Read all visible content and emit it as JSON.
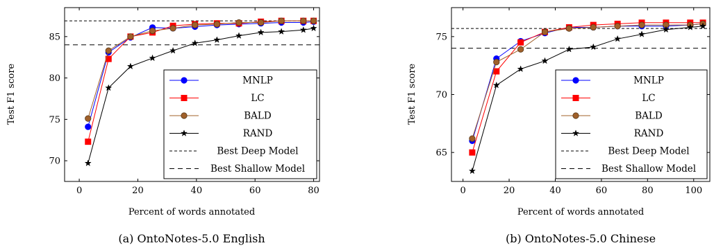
{
  "chart_data": [
    {
      "type": "line",
      "caption": "(a) OntoNotes-5.0 English",
      "xlabel": "Percent of words annotated",
      "ylabel": "Test F1 score",
      "xlim": [
        -5,
        82
      ],
      "ylim": [
        67.5,
        88.5
      ],
      "xticks": [
        0,
        20,
        40,
        60,
        80
      ],
      "yticks": [
        70,
        75,
        80,
        85
      ],
      "grid": false,
      "legend_position": "bottom-right",
      "series": [
        {
          "name": "MNLP",
          "color": "#0000ff",
          "marker": "circle",
          "x": [
            3,
            10,
            17.5,
            25,
            32,
            39.5,
            47,
            54.5,
            62,
            69,
            76.5,
            80
          ],
          "y": [
            74.1,
            83.1,
            84.9,
            86.1,
            86.0,
            86.2,
            86.4,
            86.5,
            86.6,
            86.7,
            86.7,
            86.8
          ]
        },
        {
          "name": "LC",
          "color": "#ff0000",
          "marker": "square",
          "x": [
            3,
            10,
            17.5,
            25,
            32,
            39.5,
            47,
            54.5,
            62,
            69,
            76.5,
            80
          ],
          "y": [
            72.3,
            82.3,
            85.0,
            85.5,
            86.3,
            86.5,
            86.6,
            86.6,
            86.8,
            86.9,
            86.9,
            86.9
          ]
        },
        {
          "name": "BALD",
          "color": "#a0602a",
          "marker": "circle",
          "x": [
            3,
            10,
            17.5,
            25,
            32,
            39.5,
            47,
            54.5,
            62,
            69,
            76.5,
            80
          ],
          "y": [
            75.1,
            83.3,
            85.0,
            85.7,
            86.0,
            86.4,
            86.5,
            86.7,
            86.7,
            86.9,
            86.9,
            86.9
          ]
        },
        {
          "name": "RAND",
          "color": "#000000",
          "marker": "star",
          "x": [
            3,
            10,
            17.5,
            25,
            32,
            39.5,
            47,
            54.5,
            62,
            69,
            76.5,
            80
          ],
          "y": [
            69.7,
            78.8,
            81.4,
            82.4,
            83.3,
            84.2,
            84.6,
            85.1,
            85.5,
            85.6,
            85.8,
            86.0
          ]
        }
      ],
      "reference_lines": [
        {
          "name": "Best Deep Model",
          "y": 86.9,
          "dash": "4,3"
        },
        {
          "name": "Best Shallow Model",
          "y": 84.0,
          "dash": "7,5"
        }
      ]
    },
    {
      "type": "line",
      "caption": "(b) OntoNotes-5.0 Chinese",
      "xlabel": "Percent of words annotated",
      "ylabel": "Test F1 score",
      "xlim": [
        -5,
        107
      ],
      "ylim": [
        62.5,
        77.5
      ],
      "xticks": [
        0,
        20,
        40,
        60,
        80,
        100
      ],
      "yticks": [
        65,
        70,
        75
      ],
      "grid": false,
      "legend_position": "bottom-right",
      "series": [
        {
          "name": "MNLP",
          "color": "#0000ff",
          "marker": "circle",
          "x": [
            4,
            14.5,
            25,
            35.5,
            46,
            56.5,
            67,
            77.5,
            88,
            98.5,
            104
          ],
          "y": [
            66.0,
            73.1,
            74.6,
            75.3,
            75.8,
            75.8,
            75.9,
            75.9,
            75.9,
            76.0,
            76.1
          ]
        },
        {
          "name": "LC",
          "color": "#ff0000",
          "marker": "square",
          "x": [
            4,
            14.5,
            25,
            35.5,
            46,
            56.5,
            67,
            77.5,
            88,
            98.5,
            104
          ],
          "y": [
            65.0,
            72.0,
            74.5,
            75.4,
            75.8,
            76.0,
            76.1,
            76.2,
            76.2,
            76.2,
            76.2
          ]
        },
        {
          "name": "BALD",
          "color": "#a0602a",
          "marker": "circle",
          "x": [
            4,
            14.5,
            25,
            35.5,
            46,
            56.5,
            67,
            77.5,
            88,
            98.5,
            104
          ],
          "y": [
            66.2,
            72.8,
            73.9,
            75.4,
            75.7,
            75.8,
            75.9,
            76.0,
            76.0,
            76.0,
            76.1
          ]
        },
        {
          "name": "RAND",
          "color": "#000000",
          "marker": "star",
          "x": [
            4,
            14.5,
            25,
            35.5,
            46,
            56.5,
            67,
            77.5,
            88,
            98.5,
            104
          ],
          "y": [
            63.4,
            70.8,
            72.2,
            72.9,
            73.9,
            74.1,
            74.8,
            75.2,
            75.6,
            75.8,
            75.9
          ]
        }
      ],
      "reference_lines": [
        {
          "name": "Best Deep Model",
          "y": 75.7,
          "dash": "4,3"
        },
        {
          "name": "Best Shallow Model",
          "y": 74.0,
          "dash": "7,5"
        }
      ]
    }
  ]
}
